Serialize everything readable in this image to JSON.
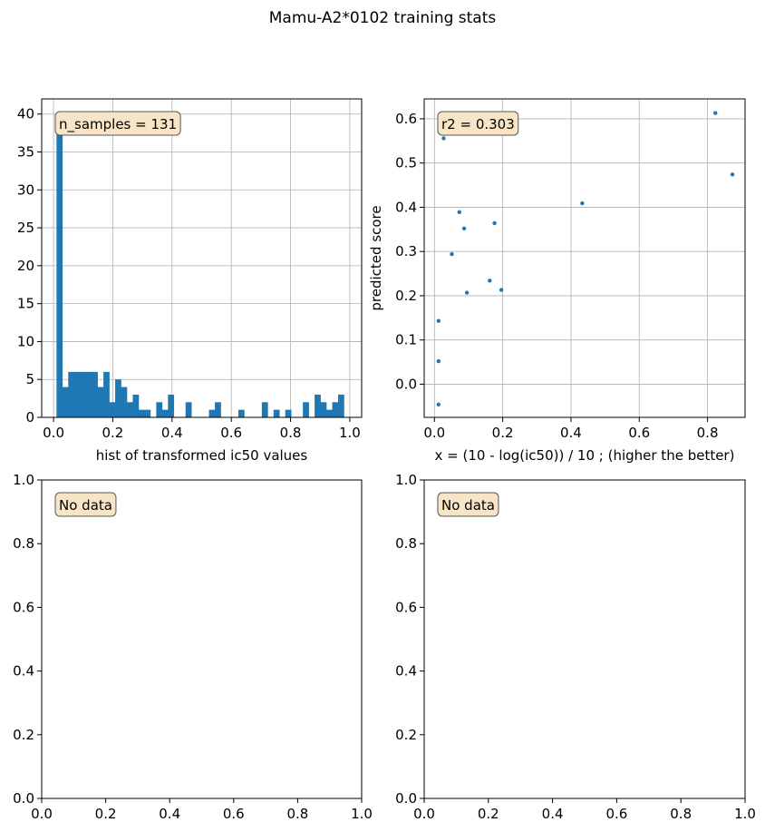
{
  "figure": {
    "title": "Mamu-A2*0102 training stats"
  },
  "colors": {
    "bar": "#1f77b4",
    "point": "#1f77b4",
    "grid": "#b0b0b0",
    "box_fill": "#f8e5c8",
    "box_edge": "#555555"
  },
  "chart_data": [
    {
      "type": "bar",
      "panel": "top-left",
      "annotation": "n_samples = 131",
      "xlabel": "hist of transformed ic50 values",
      "ylabel": "",
      "xlim": [
        -0.04,
        1.04
      ],
      "ylim": [
        0,
        42
      ],
      "xticks": [
        0.0,
        0.2,
        0.4,
        0.6,
        0.8,
        1.0
      ],
      "xtick_labels": [
        "0.0",
        "0.2",
        "0.4",
        "0.6",
        "0.8",
        "1.0"
      ],
      "yticks": [
        0,
        5,
        10,
        15,
        20,
        25,
        30,
        35,
        40
      ],
      "ytick_labels": [
        "0",
        "5",
        "10",
        "15",
        "20",
        "25",
        "30",
        "35",
        "40"
      ],
      "grid": true,
      "bin_start": 0.01,
      "bin_width": 0.0198,
      "counts": [
        40,
        4,
        6,
        6,
        6,
        6,
        6,
        4,
        6,
        2,
        5,
        4,
        2,
        3,
        1,
        1,
        0,
        2,
        1,
        3,
        0,
        0,
        2,
        0,
        0,
        0,
        1,
        2,
        0,
        0,
        0,
        1,
        0,
        0,
        0,
        2,
        0,
        1,
        0,
        1,
        0,
        0,
        2,
        0,
        3,
        2,
        1,
        2,
        3
      ]
    },
    {
      "type": "scatter",
      "panel": "top-right",
      "annotation": "r2 = 0.303",
      "xlabel": "x = (10 - log(ic50)) / 10 ; (higher the better)",
      "ylabel": "predicted score",
      "xlim": [
        -0.03,
        0.91
      ],
      "ylim": [
        -0.075,
        0.645
      ],
      "xticks": [
        0.0,
        0.2,
        0.4,
        0.6,
        0.8
      ],
      "xtick_labels": [
        "0.0",
        "0.2",
        "0.4",
        "0.6",
        "0.8"
      ],
      "yticks": [
        0.0,
        0.1,
        0.2,
        0.3,
        0.4,
        0.5,
        0.6
      ],
      "ytick_labels": [
        "0.0",
        "0.1",
        "0.2",
        "0.3",
        "0.4",
        "0.5",
        "0.6"
      ],
      "grid": true,
      "points": [
        {
          "x": 0.027,
          "y": 0.556
        },
        {
          "x": 0.012,
          "y": 0.143
        },
        {
          "x": 0.012,
          "y": 0.052
        },
        {
          "x": 0.012,
          "y": -0.046
        },
        {
          "x": 0.051,
          "y": 0.294
        },
        {
          "x": 0.073,
          "y": 0.389
        },
        {
          "x": 0.087,
          "y": 0.352
        },
        {
          "x": 0.095,
          "y": 0.207
        },
        {
          "x": 0.162,
          "y": 0.234
        },
        {
          "x": 0.176,
          "y": 0.364
        },
        {
          "x": 0.196,
          "y": 0.213
        },
        {
          "x": 0.433,
          "y": 0.409
        },
        {
          "x": 0.823,
          "y": 0.613
        },
        {
          "x": 0.873,
          "y": 0.474
        }
      ]
    },
    {
      "type": "scatter",
      "panel": "bottom-left",
      "annotation": "No data",
      "xlabel": "",
      "ylabel": "",
      "xlim": [
        0,
        1
      ],
      "ylim": [
        0,
        1
      ],
      "xticks": [
        0.0,
        0.2,
        0.4,
        0.6,
        0.8,
        1.0
      ],
      "xtick_labels": [
        "0.0",
        "0.2",
        "0.4",
        "0.6",
        "0.8",
        "1.0"
      ],
      "yticks": [
        0.0,
        0.2,
        0.4,
        0.6,
        0.8,
        1.0
      ],
      "ytick_labels": [
        "0.0",
        "0.2",
        "0.4",
        "0.6",
        "0.8",
        "1.0"
      ],
      "grid": false,
      "points": []
    },
    {
      "type": "scatter",
      "panel": "bottom-right",
      "annotation": "No data",
      "xlabel": "",
      "ylabel": "",
      "xlim": [
        0,
        1
      ],
      "ylim": [
        0,
        1
      ],
      "xticks": [
        0.0,
        0.2,
        0.4,
        0.6,
        0.8,
        1.0
      ],
      "xtick_labels": [
        "0.0",
        "0.2",
        "0.4",
        "0.6",
        "0.8",
        "1.0"
      ],
      "yticks": [
        0.0,
        0.2,
        0.4,
        0.6,
        0.8,
        1.0
      ],
      "ytick_labels": [
        "0.0",
        "0.2",
        "0.4",
        "0.6",
        "0.8",
        "1.0"
      ],
      "grid": false,
      "points": []
    }
  ]
}
